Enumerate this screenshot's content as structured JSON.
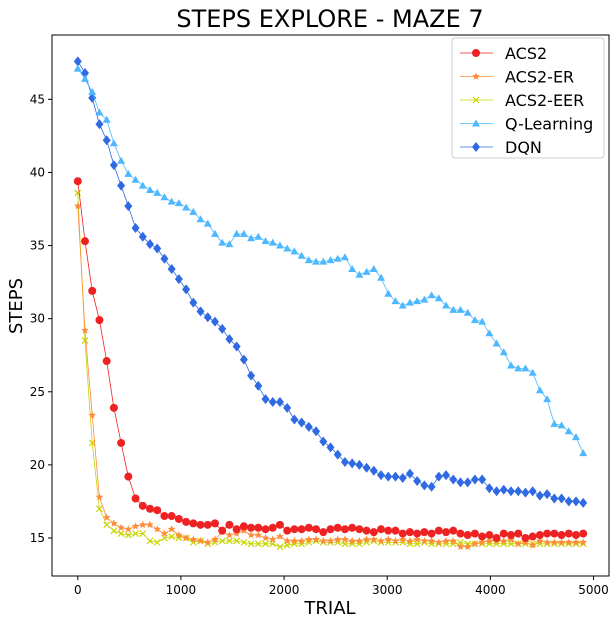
{
  "chart_data": {
    "type": "line",
    "title": "STEPS EXPLORE - MAZE 7",
    "xlabel": "TRIAL",
    "ylabel": "STEPS",
    "xlim": [
      -250,
      5150
    ],
    "ylim": [
      12.4,
      49.4
    ],
    "xticks": [
      0,
      1000,
      2000,
      3000,
      4000,
      5000
    ],
    "yticks": [
      15,
      20,
      25,
      30,
      35,
      40,
      45
    ],
    "grid": false,
    "legend_position": "top-right",
    "series": [
      {
        "name": "ACS2",
        "color": "#ee2222",
        "marker": "circle",
        "x": [
          0,
          70,
          140,
          210,
          280,
          350,
          420,
          490,
          560,
          630,
          700,
          770,
          840,
          910,
          980,
          1050,
          1120,
          1190,
          1260,
          1330,
          1400,
          1470,
          1540,
          1610,
          1680,
          1750,
          1820,
          1890,
          1960,
          2030,
          2100,
          2170,
          2240,
          2310,
          2380,
          2450,
          2520,
          2590,
          2660,
          2730,
          2800,
          2870,
          2940,
          3010,
          3080,
          3150,
          3220,
          3290,
          3360,
          3430,
          3500,
          3570,
          3640,
          3710,
          3780,
          3850,
          3920,
          3990,
          4060,
          4130,
          4200,
          4270,
          4340,
          4410,
          4480,
          4550,
          4620,
          4690,
          4760,
          4830,
          4900
        ],
        "y": [
          39.4,
          35.3,
          31.9,
          29.9,
          27.1,
          23.9,
          21.5,
          19.2,
          17.7,
          17.2,
          17.0,
          16.9,
          16.5,
          16.5,
          16.3,
          16.1,
          16.0,
          15.9,
          15.9,
          16.0,
          15.5,
          15.9,
          15.6,
          15.8,
          15.7,
          15.7,
          15.6,
          15.7,
          15.9,
          15.5,
          15.6,
          15.6,
          15.7,
          15.6,
          15.4,
          15.6,
          15.7,
          15.6,
          15.7,
          15.6,
          15.5,
          15.4,
          15.6,
          15.5,
          15.5,
          15.3,
          15.4,
          15.3,
          15.4,
          15.3,
          15.5,
          15.4,
          15.5,
          15.3,
          15.2,
          15.3,
          15.1,
          15.2,
          15.0,
          15.3,
          15.2,
          15.3,
          15.0,
          15.1,
          15.2,
          15.3,
          15.3,
          15.2,
          15.3,
          15.2,
          15.3
        ]
      },
      {
        "name": "ACS2-ER",
        "color": "#ff8c3a",
        "marker": "star",
        "x": [
          0,
          70,
          140,
          210,
          280,
          350,
          420,
          490,
          560,
          630,
          700,
          770,
          840,
          910,
          980,
          1050,
          1120,
          1190,
          1260,
          1330,
          1400,
          1470,
          1540,
          1610,
          1680,
          1750,
          1820,
          1890,
          1960,
          2030,
          2100,
          2170,
          2240,
          2310,
          2380,
          2450,
          2520,
          2590,
          2660,
          2730,
          2800,
          2870,
          2940,
          3010,
          3080,
          3150,
          3220,
          3290,
          3360,
          3430,
          3500,
          3570,
          3640,
          3710,
          3780,
          3850,
          3920,
          3990,
          4060,
          4130,
          4200,
          4270,
          4340,
          4410,
          4480,
          4550,
          4620,
          4690,
          4760,
          4830,
          4900
        ],
        "y": [
          37.7,
          29.2,
          23.4,
          17.8,
          16.4,
          16.0,
          15.7,
          15.6,
          15.8,
          15.9,
          15.9,
          15.6,
          15.3,
          15.6,
          15.2,
          15.0,
          14.9,
          14.8,
          14.7,
          14.9,
          15.4,
          15.2,
          15.3,
          15.5,
          15.2,
          15.2,
          15.0,
          14.9,
          15.1,
          14.8,
          14.8,
          14.8,
          14.9,
          14.9,
          14.8,
          14.8,
          14.9,
          14.9,
          14.8,
          14.8,
          14.9,
          14.9,
          14.8,
          14.9,
          14.8,
          14.9,
          14.8,
          14.9,
          14.8,
          14.8,
          14.7,
          14.8,
          14.8,
          14.4,
          14.4,
          14.6,
          14.7,
          14.8,
          14.8,
          14.8,
          14.9,
          14.6,
          14.7,
          14.5,
          14.8,
          14.7,
          14.7,
          14.7,
          14.7,
          14.7,
          14.7
        ]
      },
      {
        "name": "ACS2-EER",
        "color": "#c8d400",
        "marker": "x",
        "x": [
          0,
          70,
          140,
          210,
          280,
          350,
          420,
          490,
          560,
          630,
          700,
          770,
          840,
          910,
          980,
          1050,
          1120,
          1190,
          1260,
          1330,
          1400,
          1470,
          1540,
          1610,
          1680,
          1750,
          1820,
          1890,
          1960,
          2030,
          2100,
          2170,
          2240,
          2310,
          2380,
          2450,
          2520,
          2590,
          2660,
          2730,
          2800,
          2870,
          2940,
          3010,
          3080,
          3150,
          3220,
          3290,
          3360,
          3430,
          3500,
          3570,
          3640,
          3710,
          3780,
          3850,
          3920,
          3990,
          4060,
          4130,
          4200,
          4270,
          4340,
          4410,
          4480,
          4550,
          4620,
          4690,
          4760,
          4830,
          4900
        ],
        "y": [
          38.6,
          28.5,
          21.5,
          17.0,
          15.9,
          15.5,
          15.3,
          15.2,
          15.3,
          15.3,
          14.8,
          14.7,
          15.0,
          15.1,
          15.0,
          15.0,
          14.7,
          14.8,
          14.6,
          14.7,
          14.8,
          14.8,
          14.8,
          14.7,
          14.6,
          14.6,
          14.6,
          14.6,
          14.4,
          14.5,
          14.6,
          14.6,
          14.7,
          14.8,
          14.7,
          14.7,
          14.7,
          14.6,
          14.6,
          14.6,
          14.7,
          14.8,
          14.7,
          14.7,
          14.7,
          14.7,
          14.6,
          14.6,
          14.7,
          14.6,
          14.6,
          14.6,
          14.6,
          14.7,
          14.6,
          14.6,
          14.6,
          14.6,
          14.6,
          14.6,
          14.6,
          14.6,
          14.6,
          14.6,
          14.6,
          14.6,
          14.6,
          14.6,
          14.6,
          14.6,
          14.6
        ]
      },
      {
        "name": "Q-Learning",
        "color": "#4db8ff",
        "marker": "triangle",
        "x": [
          0,
          70,
          140,
          210,
          280,
          350,
          420,
          490,
          560,
          630,
          700,
          770,
          840,
          910,
          980,
          1050,
          1120,
          1190,
          1260,
          1330,
          1400,
          1470,
          1540,
          1610,
          1680,
          1750,
          1820,
          1890,
          1960,
          2030,
          2100,
          2170,
          2240,
          2310,
          2380,
          2450,
          2520,
          2590,
          2660,
          2730,
          2800,
          2870,
          2940,
          3010,
          3080,
          3150,
          3220,
          3290,
          3360,
          3430,
          3500,
          3570,
          3640,
          3710,
          3780,
          3850,
          3920,
          3990,
          4060,
          4130,
          4200,
          4270,
          4340,
          4410,
          4480,
          4550,
          4620,
          4690,
          4760,
          4830,
          4900
        ],
        "y": [
          47.1,
          46.4,
          45.5,
          44.1,
          43.6,
          42.0,
          40.8,
          39.9,
          39.5,
          39.1,
          38.8,
          38.6,
          38.3,
          38.0,
          37.9,
          37.6,
          37.3,
          36.8,
          36.5,
          35.8,
          35.2,
          35.1,
          35.8,
          35.8,
          35.5,
          35.6,
          35.3,
          35.2,
          35.0,
          34.8,
          34.6,
          34.3,
          34.0,
          33.9,
          33.9,
          34.0,
          34.1,
          34.2,
          33.4,
          33.0,
          33.2,
          33.4,
          32.8,
          31.7,
          31.2,
          30.9,
          31.1,
          31.2,
          31.3,
          31.6,
          31.4,
          30.9,
          30.6,
          30.6,
          30.4,
          29.9,
          29.8,
          29.0,
          28.3,
          27.7,
          26.8,
          26.6,
          26.6,
          26.3,
          25.1,
          24.5,
          22.8,
          22.7,
          22.3,
          21.9,
          20.8
        ]
      },
      {
        "name": "DQN",
        "color": "#2f6ae3",
        "marker": "diamond",
        "x": [
          0,
          70,
          140,
          210,
          280,
          350,
          420,
          490,
          560,
          630,
          700,
          770,
          840,
          910,
          980,
          1050,
          1120,
          1190,
          1260,
          1330,
          1400,
          1470,
          1540,
          1610,
          1680,
          1750,
          1820,
          1890,
          1960,
          2030,
          2100,
          2170,
          2240,
          2310,
          2380,
          2450,
          2520,
          2590,
          2660,
          2730,
          2800,
          2870,
          2940,
          3010,
          3080,
          3150,
          3220,
          3290,
          3360,
          3430,
          3500,
          3570,
          3640,
          3710,
          3780,
          3850,
          3920,
          3990,
          4060,
          4130,
          4200,
          4270,
          4340,
          4410,
          4480,
          4550,
          4620,
          4690,
          4760,
          4830,
          4900
        ],
        "y": [
          47.6,
          46.8,
          45.1,
          43.3,
          42.2,
          40.5,
          39.1,
          37.7,
          36.2,
          35.6,
          35.1,
          34.8,
          34.1,
          33.4,
          32.7,
          32.0,
          31.1,
          30.5,
          30.1,
          29.8,
          29.3,
          28.6,
          28.1,
          27.2,
          26.1,
          25.4,
          24.5,
          24.3,
          24.3,
          23.9,
          23.1,
          22.9,
          22.6,
          22.3,
          21.6,
          21.2,
          20.7,
          20.2,
          20.1,
          20.0,
          19.8,
          19.6,
          19.3,
          19.2,
          19.2,
          19.1,
          19.4,
          18.9,
          18.6,
          18.5,
          19.2,
          19.3,
          19.0,
          18.8,
          18.8,
          19.0,
          19.0,
          18.4,
          18.2,
          18.3,
          18.2,
          18.2,
          18.1,
          18.2,
          17.9,
          18.0,
          17.7,
          17.7,
          17.5,
          17.5,
          17.4
        ]
      }
    ]
  }
}
